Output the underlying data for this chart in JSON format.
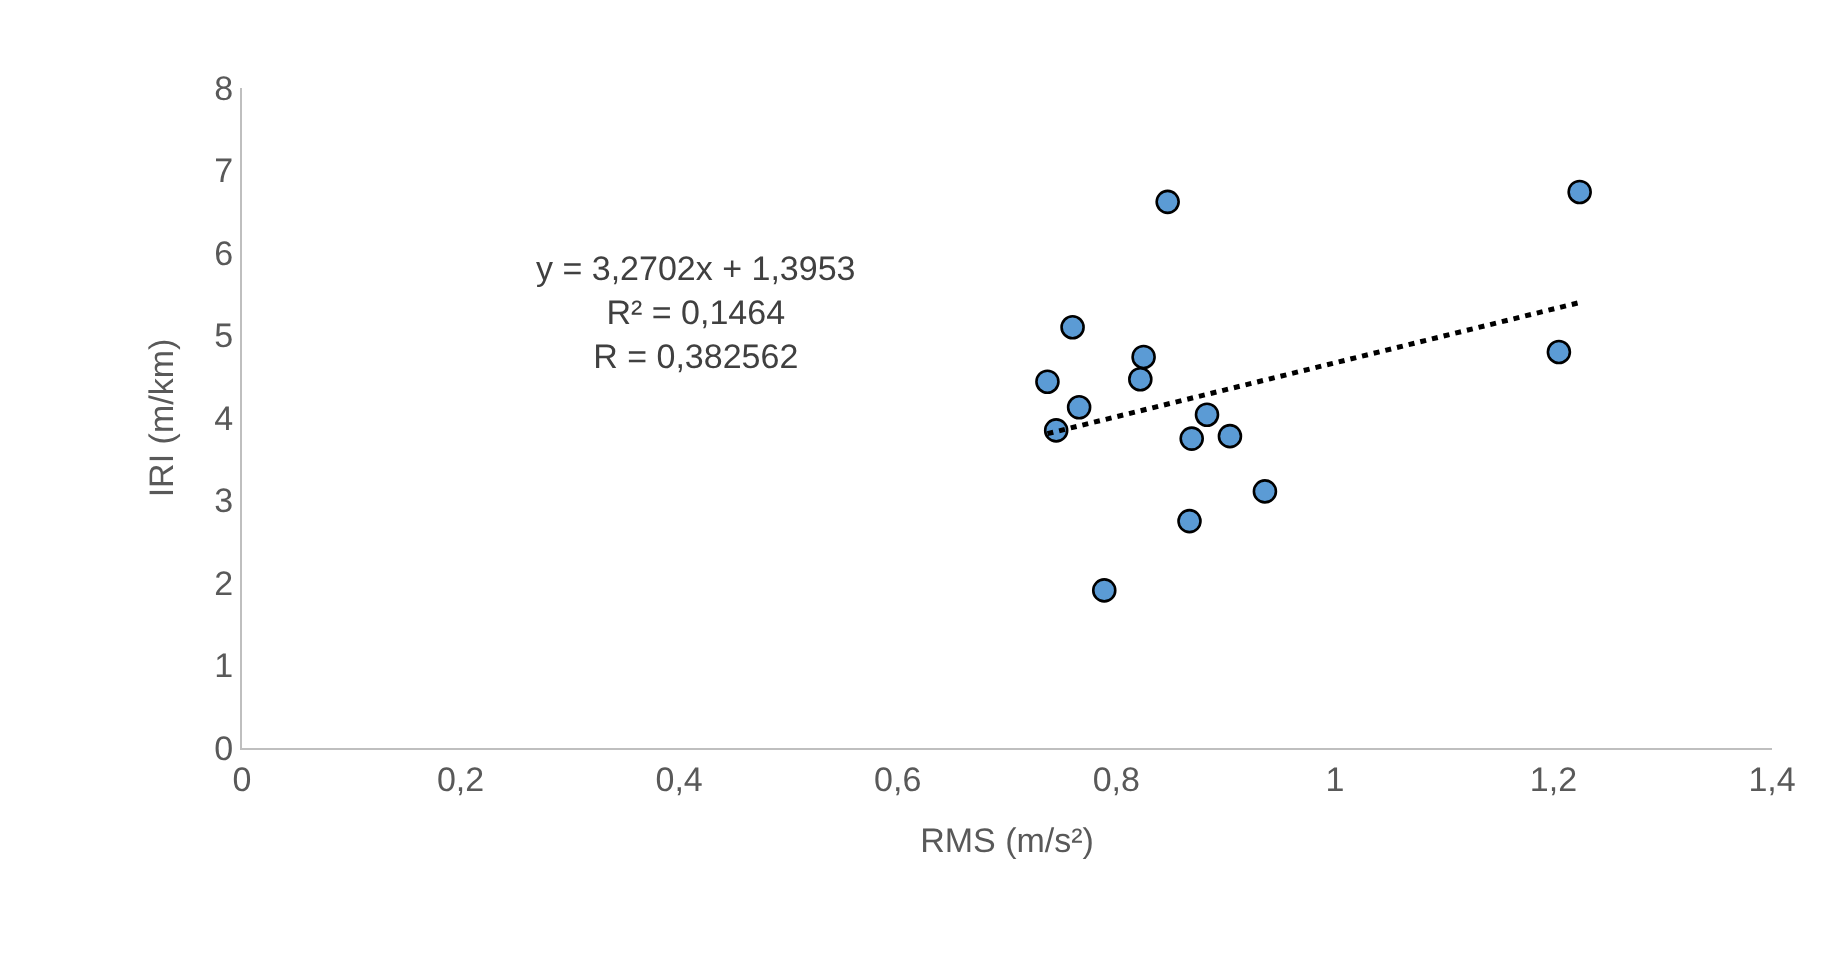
{
  "chart_data": {
    "type": "scatter",
    "xlabel": "RMS (m/s²)",
    "ylabel": "IRI (m/km)",
    "annotations": [
      "y = 3,2702x + 1,3953\nR² = 0,1464\nR = 0,382562"
    ],
    "series": [
      {
        "color": "#5b9bd5",
        "marker": "circle",
        "x": [
          0.847,
          1.224,
          0.76,
          0.825,
          0.822,
          0.737,
          0.766,
          0.745,
          0.883,
          0.869,
          0.904,
          1.205,
          0.936,
          0.867,
          0.789
        ],
        "values": [
          6.62,
          6.74,
          5.1,
          4.74,
          4.47,
          4.44,
          4.13,
          3.85,
          4.04,
          3.75,
          3.78,
          4.8,
          3.11,
          2.75,
          1.91
        ]
      },
      {
        "type": "line",
        "color": "#000000",
        "line_style": "dotted",
        "x": [
          0.737,
          1.224
        ],
        "values": [
          3.81,
          5.4
        ]
      }
    ],
    "xlim": [
      0,
      1.4
    ],
    "xticks": [
      0,
      {
        "value": 0.2,
        "label": "0,2"
      },
      {
        "value": 0.4,
        "label": "0,4"
      },
      {
        "value": 0.6,
        "label": "0,6"
      },
      {
        "value": 0.8,
        "label": "0,8"
      },
      1,
      {
        "value": 1.2,
        "label": "1,2"
      },
      {
        "value": 1.4,
        "label": "1,4"
      }
    ],
    "ylim": [
      0,
      8
    ],
    "yticks": [
      0,
      1,
      2,
      3,
      4,
      5,
      6,
      7,
      8
    ]
  }
}
